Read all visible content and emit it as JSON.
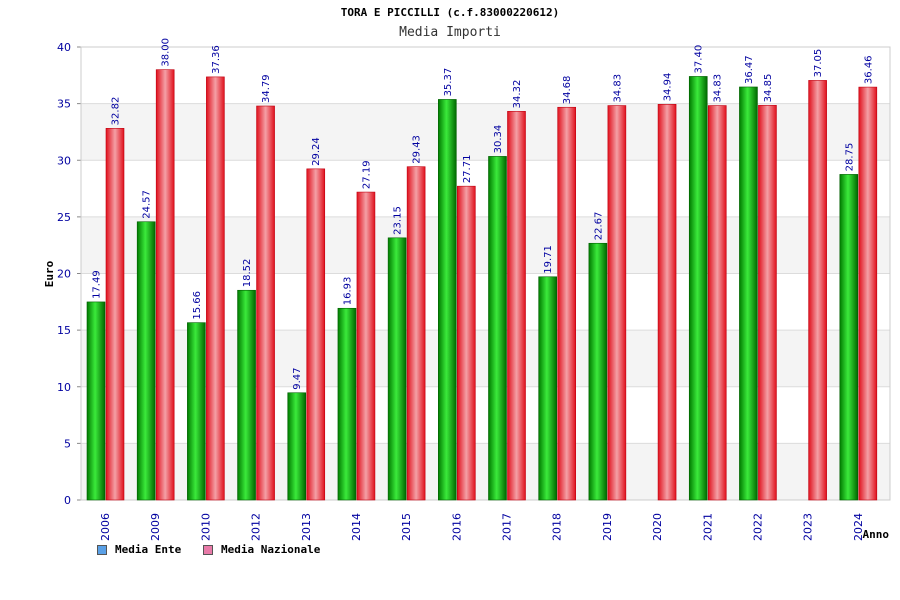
{
  "chart_data": {
    "type": "bar",
    "title": "TORA E PICCILLI (c.f.83000220612)",
    "subtitle": "Media Importi",
    "ylabel": "Euro",
    "xlabel": "Anno",
    "ylim": [
      0,
      40
    ],
    "yticks": [
      0,
      5,
      10,
      15,
      20,
      25,
      30,
      35,
      40
    ],
    "grid": true,
    "legend_position": "bottom-left",
    "categories": [
      "2006",
      "2009",
      "2010",
      "2012",
      "2013",
      "2014",
      "2015",
      "2016",
      "2017",
      "2018",
      "2019",
      "2020",
      "2021",
      "2022",
      "2023",
      "2024"
    ],
    "series": [
      {
        "name": "Media Ente",
        "color": "#00b000",
        "legend_color": "#5aa0e6",
        "values": [
          17.49,
          24.57,
          15.66,
          18.52,
          9.47,
          16.93,
          23.15,
          35.37,
          30.34,
          19.71,
          22.67,
          null,
          37.4,
          36.47,
          null,
          28.75
        ],
        "labels": [
          "17.49",
          "24.57",
          "15.66",
          "18.52",
          "9.47",
          "16.93",
          "23.15",
          "35.37",
          "30.34",
          "19.71",
          "22.67",
          "",
          "37.40",
          "36.47",
          "",
          "28.75"
        ]
      },
      {
        "name": "Media Nazionale",
        "color": "#e8202a",
        "legend_color": "#e87aa8",
        "values": [
          32.82,
          38.0,
          37.36,
          34.79,
          29.24,
          27.19,
          29.43,
          27.71,
          34.32,
          34.68,
          34.83,
          34.94,
          34.83,
          34.85,
          37.05,
          36.46
        ],
        "labels": [
          "32.82",
          "38.00",
          "37.36",
          "34.79",
          "29.24",
          "27.19",
          "29.43",
          "27.71",
          "34.32",
          "34.68",
          "34.83",
          "34.94",
          "34.83",
          "34.85",
          "37.05",
          "36.46"
        ]
      }
    ]
  }
}
